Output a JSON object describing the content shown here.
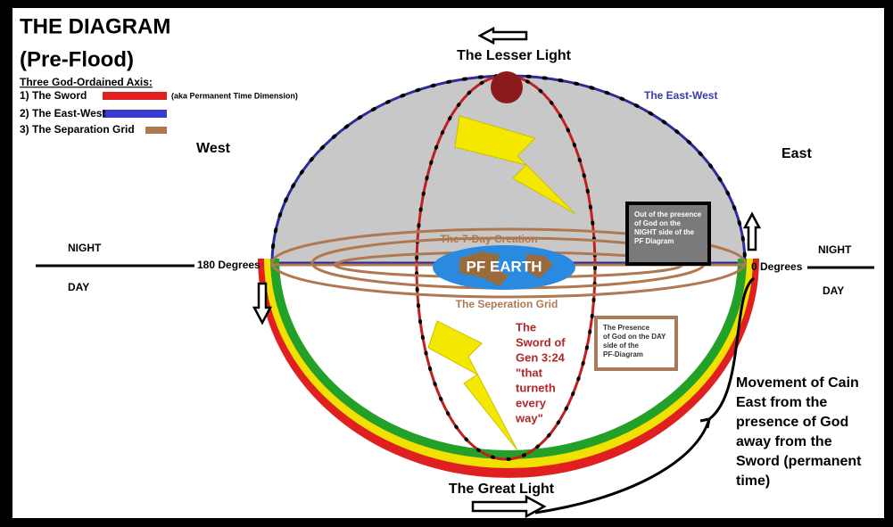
{
  "header": {
    "title": "THE DIAGRAM",
    "subtitle": "(Pre-Flood)"
  },
  "legend": {
    "heading": "Three God-Ordained Axis:",
    "items": [
      {
        "label": "1) The Sword",
        "note": "(aka Permanent Time Dimension)"
      },
      {
        "label": "2) The East-West"
      },
      {
        "label": "3) The Separation Grid"
      }
    ]
  },
  "labels": {
    "west": "West",
    "east": "East",
    "lesser_light": "The Lesser Light",
    "east_west": "The East-West",
    "night_left": "NIGHT",
    "day_left": "DAY",
    "night_right": "NIGHT",
    "day_right": "DAY",
    "deg180": "180 Degrees",
    "deg0": "0 Degrees",
    "creation": "The 7-Day Creation",
    "earth": "PF EARTH",
    "grid": "The Seperation Grid",
    "great_light": "The Great Light"
  },
  "night_box": {
    "lines": [
      "Out of the presence",
      "of God on the",
      "NIGHT side of the",
      "PF Diagram"
    ]
  },
  "day_box": {
    "lines": [
      "The Presence",
      "of God on the DAY",
      "side of the",
      "PF-Diagram"
    ]
  },
  "sword_label": {
    "lines": [
      "The",
      "Sword of",
      "Gen 3:24",
      "\"that",
      "turneth",
      "every",
      "way\""
    ]
  },
  "cain": {
    "lines": [
      "Movement of Cain",
      "East from the",
      "presence of God",
      "away from the",
      "Sword (permanent",
      "time)"
    ]
  }
}
